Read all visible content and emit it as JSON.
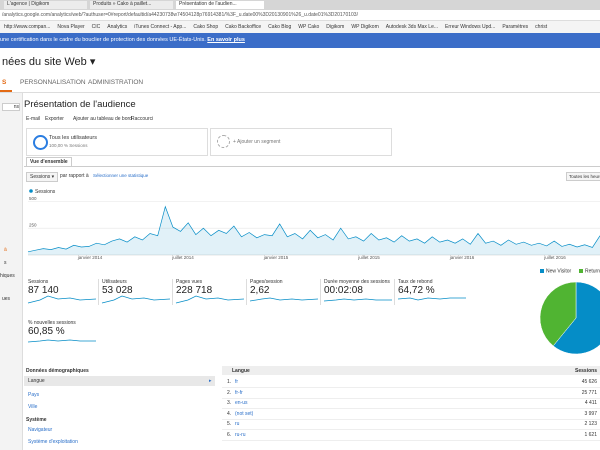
{
  "browser": {
    "tabs": [
      "L'agence | Digikom",
      "Produits » Cako à paillet...",
      "Présentation de l'audien..."
    ],
    "url": "/analytics.google.com/analytics/web/?authuser=0#report/defaultid/a44230738w74504128p76914381/%3F_u.date00%3D20130901%26_u.date01%3D20170103/",
    "bookmarks": [
      "http://www.compan...",
      "Nova Player",
      "CIC",
      "Analytics",
      "iTunes Connect - App...",
      "Cako Shop",
      "Cako Backoffice",
      "Cako Blog",
      "WP Cako",
      "Digikom",
      "WP Digikom",
      "Autodesk 3ds Max Le...",
      "Erreur Windows Upd...",
      "Paramètres",
      "christ"
    ]
  },
  "banner": {
    "text": "une certification dans le cadre du bouclier de protection des données UE-États-Unis.",
    "link": "En savoir plus"
  },
  "header": {
    "property": "nées du site Web",
    "nav": [
      "S",
      "PERSONNALISATION",
      "ADMINISTRATION"
    ]
  },
  "sidebar": [
    "ns",
    "à",
    "s",
    "hiques",
    "ues"
  ],
  "report": {
    "title": "Présentation de l'audience",
    "toolbar": [
      "E-mail",
      "Exporter",
      "Ajouter au tableau de bord",
      "Raccourci"
    ],
    "segment": {
      "name": "Tous les utilisateurs",
      "detail": "100,00 % Sessions",
      "add": "+ Ajouter un segment"
    },
    "tab": "Vue d'ensemble",
    "controls": {
      "metric": "Sessions",
      "compare": "par rapport à",
      "select": "Sélectionner une statistique",
      "interval": "Toutes les heure"
    }
  },
  "chart_data": {
    "type": "line",
    "series": [
      {
        "name": "Sessions",
        "color": "#058dc7",
        "values": [
          30,
          45,
          60,
          50,
          70,
          55,
          90,
          75,
          80,
          110,
          95,
          130,
          150,
          120,
          170,
          140,
          200,
          180,
          450,
          260,
          220,
          300,
          190,
          250,
          180,
          230,
          200,
          270,
          170,
          210,
          160,
          190,
          180,
          290,
          170,
          200,
          150,
          230,
          160,
          190,
          140,
          250,
          150,
          170,
          130,
          200,
          140,
          160,
          120,
          180,
          130,
          150,
          110,
          170,
          120,
          140,
          110,
          150,
          100,
          200,
          110,
          130,
          90,
          140,
          100,
          120,
          90,
          110,
          85,
          130,
          80,
          100,
          75,
          95,
          70,
          180
        ]
      }
    ],
    "ylim": [
      0,
      550
    ],
    "yticks": [
      250,
      500
    ],
    "x_labels": [
      "janvier 2014",
      "juillet 2014",
      "janvier 2015",
      "juillet 2015",
      "janvier 2016",
      "juillet 2016"
    ]
  },
  "metrics": [
    {
      "label": "Sessions",
      "value": "87 140"
    },
    {
      "label": "Utilisateurs",
      "value": "53 028"
    },
    {
      "label": "Pages vues",
      "value": "228 718"
    },
    {
      "label": "Pages/session",
      "value": "2,62"
    },
    {
      "label": "Durée moyenne des sessions",
      "value": "00:02:08"
    },
    {
      "label": "Taux de rebond",
      "value": "64,72 %"
    },
    {
      "label": "% nouvelles sessions",
      "value": "60,85 %"
    }
  ],
  "pie": {
    "type": "pie",
    "labels": [
      "New Visitor",
      "Return"
    ],
    "values": [
      60.9,
      39.1
    ],
    "colors": [
      "#058dc7",
      "#50b432"
    ]
  },
  "demographics": {
    "title": "Données démographiques",
    "items": [
      "Langue",
      "Pays",
      "Ville"
    ],
    "system_title": "Système",
    "system_items": [
      "Navigateur",
      "Système d'exploitation"
    ]
  },
  "table": {
    "headers": [
      "Langue",
      "Sessions"
    ],
    "rows": [
      [
        "1.",
        "fr",
        "45 626"
      ],
      [
        "2.",
        "fr-fr",
        "25 771"
      ],
      [
        "3.",
        "en-us",
        "4 411"
      ],
      [
        "4.",
        "(not set)",
        "3 997"
      ],
      [
        "5.",
        "ru",
        "2 123"
      ],
      [
        "6.",
        "ru-ru",
        "1 621"
      ]
    ]
  }
}
